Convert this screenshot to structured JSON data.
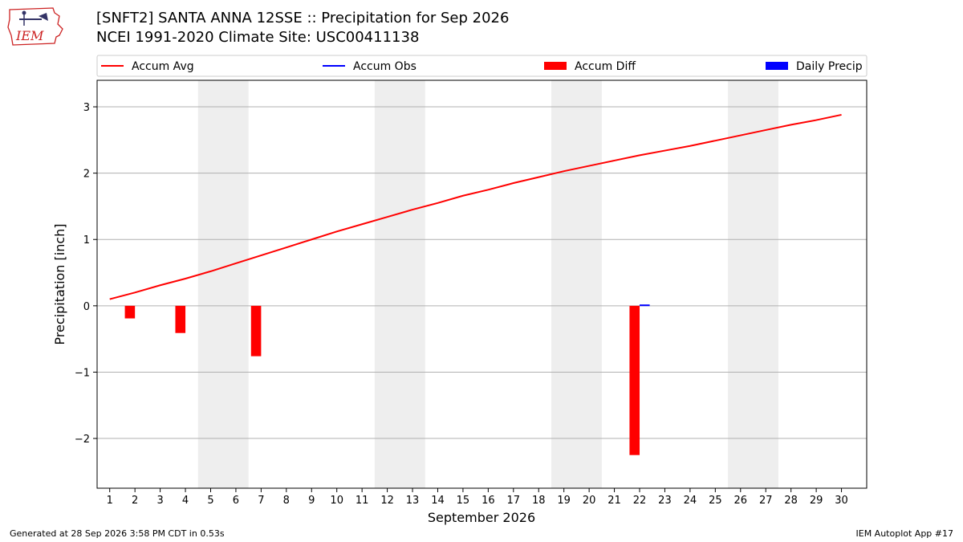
{
  "header": {
    "title_line1": "[SNFT2] SANTA ANNA 12SSE :: Precipitation for Sep 2026",
    "title_line2": "NCEI 1991-2020 Climate Site: USC00411138"
  },
  "logo": {
    "text": "IEM",
    "icon": "iowa-state-outline-icon"
  },
  "footer": {
    "left": "Generated at 28 Sep 2026 3:58 PM CDT in 0.53s",
    "right": "IEM Autoplot App #17"
  },
  "chart_data": {
    "type": "line",
    "xlabel": "September 2026",
    "ylabel": "Precipitation [inch]",
    "xlim": [
      0.5,
      31
    ],
    "ylim": [
      -2.75,
      3.4
    ],
    "x_ticks": [
      1,
      2,
      3,
      4,
      5,
      6,
      7,
      8,
      9,
      10,
      11,
      12,
      13,
      14,
      15,
      16,
      17,
      18,
      19,
      20,
      21,
      22,
      23,
      24,
      25,
      26,
      27,
      28,
      29,
      30
    ],
    "y_ticks": [
      -2,
      -1,
      0,
      1,
      2,
      3
    ],
    "y_tick_labels": [
      "−2",
      "−1",
      "0",
      "1",
      "2",
      "3"
    ],
    "grid": "horizontal",
    "legend_position": "top",
    "weekend_shading": [
      [
        5,
        6
      ],
      [
        12,
        13
      ],
      [
        19,
        20
      ],
      [
        26,
        27
      ]
    ],
    "weekend_color": "#eeeeee",
    "series": [
      {
        "name": "Accum Avg",
        "kind": "line",
        "color": "#ff0000",
        "x": [
          1,
          2,
          3,
          4,
          5,
          6,
          7,
          8,
          9,
          10,
          11,
          12,
          13,
          14,
          15,
          16,
          17,
          18,
          19,
          20,
          21,
          22,
          23,
          24,
          25,
          26,
          27,
          28,
          29,
          30
        ],
        "values": [
          0.1,
          0.2,
          0.31,
          0.41,
          0.52,
          0.64,
          0.76,
          0.88,
          1.0,
          1.12,
          1.23,
          1.34,
          1.45,
          1.55,
          1.66,
          1.75,
          1.85,
          1.94,
          2.03,
          2.11,
          2.19,
          2.27,
          2.34,
          2.41,
          2.49,
          2.57,
          2.65,
          2.73,
          2.8,
          2.88
        ]
      },
      {
        "name": "Accum Obs",
        "kind": "line",
        "color": "#0000ff",
        "x": [],
        "values": []
      },
      {
        "name": "Accum Diff",
        "kind": "bar",
        "color": "#ff0000",
        "x": [
          2,
          4,
          7,
          22
        ],
        "values": [
          -0.19,
          -0.41,
          -0.76,
          -2.25
        ]
      },
      {
        "name": "Daily Precip",
        "kind": "bar",
        "color": "#0000ff",
        "x": [
          22
        ],
        "values": [
          0.02
        ]
      }
    ]
  }
}
